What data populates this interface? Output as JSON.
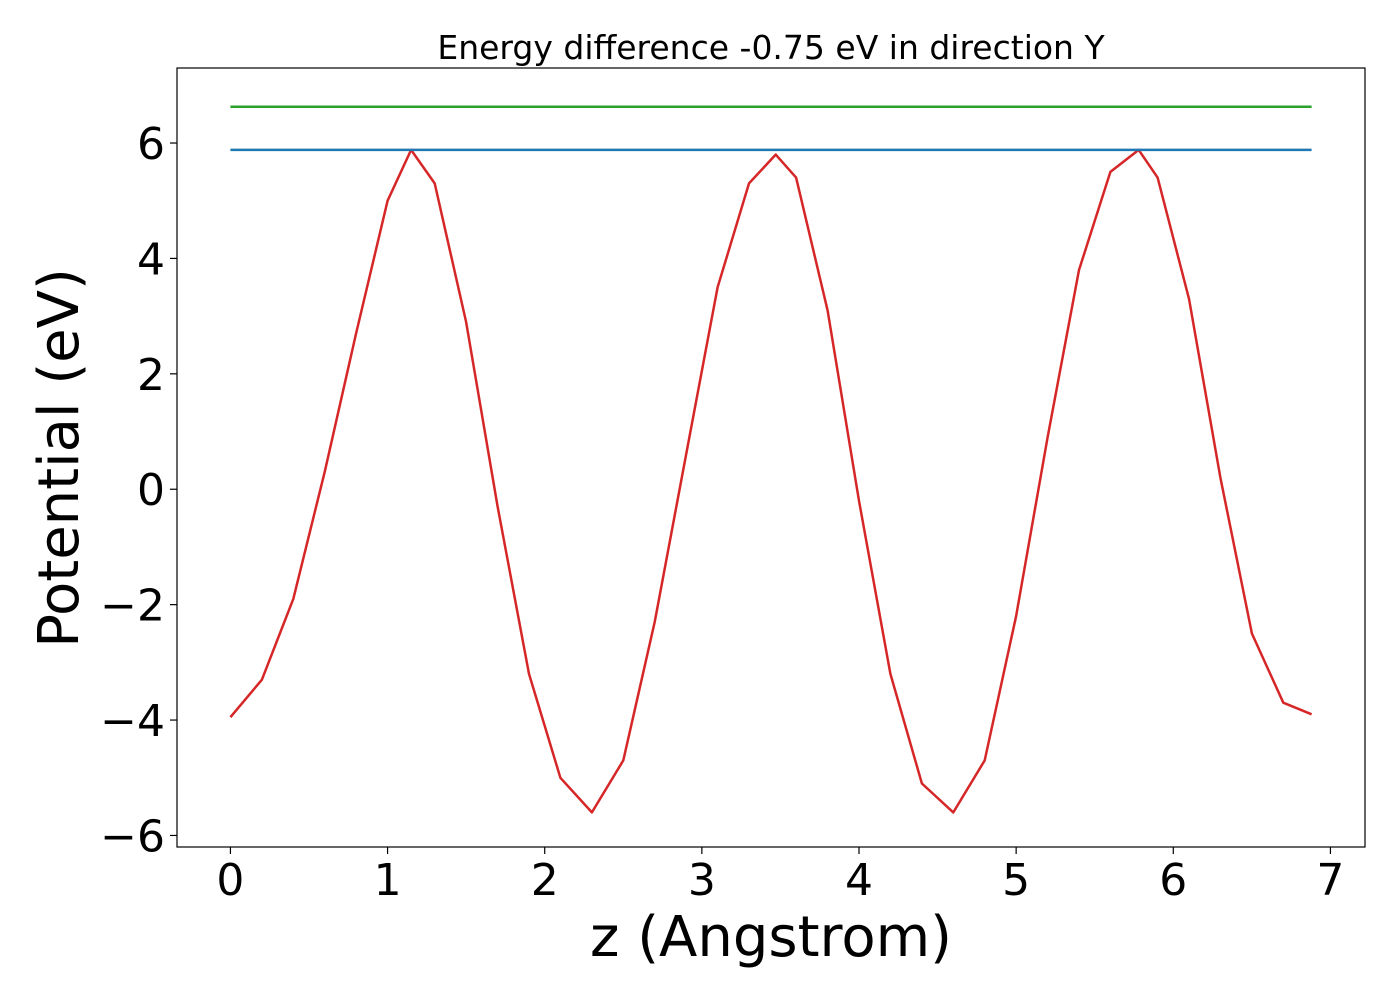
{
  "chart_data": {
    "type": "line",
    "title": "Energy difference -0.75 eV in direction Y",
    "xlabel": "z (Angstrom)",
    "ylabel": "Potential (eV)",
    "xlim": [
      -0.34,
      7.22
    ],
    "ylim": [
      -6.2,
      7.3
    ],
    "xticks": [
      0,
      1,
      2,
      3,
      4,
      5,
      6,
      7
    ],
    "xtick_labels": [
      "0",
      "1",
      "2",
      "3",
      "4",
      "5",
      "6",
      "7"
    ],
    "yticks": [
      -6,
      -4,
      -2,
      0,
      2,
      4,
      6
    ],
    "ytick_labels": [
      "−6",
      "−4",
      "−2",
      "0",
      "2",
      "4",
      "6"
    ],
    "grid": false,
    "series": [
      {
        "color": "#d62728",
        "x": [
          0.0,
          0.2,
          0.4,
          0.6,
          0.8,
          1.0,
          1.15,
          1.3,
          1.5,
          1.7,
          1.9,
          2.1,
          2.3,
          2.5,
          2.7,
          2.9,
          3.1,
          3.3,
          3.47,
          3.6,
          3.8,
          4.0,
          4.2,
          4.4,
          4.6,
          4.8,
          5.0,
          5.2,
          5.4,
          5.6,
          5.78,
          5.9,
          6.1,
          6.3,
          6.5,
          6.7,
          6.88
        ],
        "y": [
          -3.95,
          -3.3,
          -1.9,
          0.3,
          2.7,
          5.0,
          5.88,
          5.3,
          2.9,
          -0.3,
          -3.2,
          -5.0,
          -5.6,
          -4.7,
          -2.3,
          0.6,
          3.5,
          5.3,
          5.8,
          5.4,
          3.1,
          -0.2,
          -3.2,
          -5.1,
          -5.6,
          -4.7,
          -2.2,
          0.9,
          3.8,
          5.5,
          5.88,
          5.4,
          3.3,
          0.2,
          -2.5,
          -3.7,
          -3.9
        ]
      },
      {
        "color": "#1f77b4",
        "x": [
          0.0,
          6.88
        ],
        "y": [
          5.88,
          5.88
        ]
      },
      {
        "color": "#2ca02c",
        "x": [
          0.0,
          6.88
        ],
        "y": [
          6.63,
          6.63
        ]
      }
    ]
  }
}
